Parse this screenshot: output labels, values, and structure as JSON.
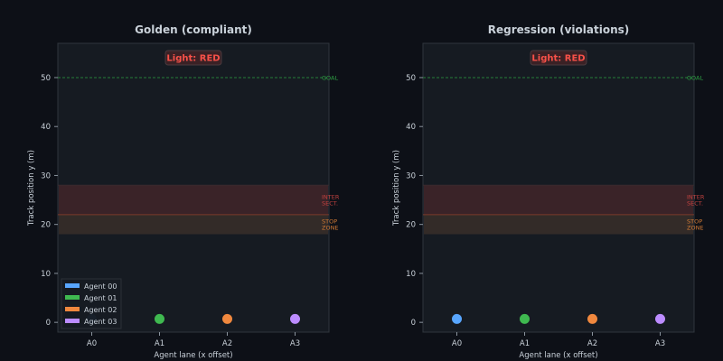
{
  "chart_data": [
    {
      "type": "scatter",
      "title": "Golden  (compliant)",
      "xlabel": "Agent lane (x offset)",
      "ylabel": "Track position  y (m)",
      "xlim": [
        -0.5,
        3.5
      ],
      "ylim": [
        -2,
        57
      ],
      "yticks": [
        0,
        10,
        20,
        30,
        40,
        50
      ],
      "xticks": [
        "A0",
        "A1",
        "A2",
        "A3"
      ],
      "light_label": "Light: RED",
      "goal": {
        "y": 50,
        "label": "GOAL"
      },
      "zones": [
        {
          "name": "intersection",
          "label_lines": [
            "INTER",
            "SECT."
          ],
          "y0": 22,
          "y1": 28,
          "color": "#3a2328",
          "label_color": "#c0413f"
        },
        {
          "name": "stop-zone",
          "label_lines": [
            "STOP",
            "ZONE"
          ],
          "y0": 18,
          "y1": 22,
          "color": "#332b28",
          "label_color": "#d17a35"
        }
      ],
      "legend": {
        "placement": "lower-left",
        "entries": [
          "Agent 00",
          "Agent 01",
          "Agent 02",
          "Agent 03"
        ]
      },
      "series": [
        {
          "name": "Agent 00",
          "x": 0,
          "y": 0.7,
          "color": "#58a6ff",
          "faded": true
        },
        {
          "name": "Agent 01",
          "x": 1,
          "y": 0.7,
          "color": "#3fb950",
          "faded": false
        },
        {
          "name": "Agent 02",
          "x": 2,
          "y": 0.7,
          "color": "#f0883e",
          "faded": false
        },
        {
          "name": "Agent 03",
          "x": 3,
          "y": 0.7,
          "color": "#bc8cff",
          "faded": false
        }
      ]
    },
    {
      "type": "scatter",
      "title": "Regression  (violations)",
      "xlabel": "Agent lane (x offset)",
      "ylabel": "Track position  y (m)",
      "xlim": [
        -0.5,
        3.5
      ],
      "ylim": [
        -2,
        57
      ],
      "yticks": [
        0,
        10,
        20,
        30,
        40,
        50
      ],
      "xticks": [
        "A0",
        "A1",
        "A2",
        "A3"
      ],
      "light_label": "Light: RED",
      "goal": {
        "y": 50,
        "label": "GOAL"
      },
      "zones": [
        {
          "name": "intersection",
          "label_lines": [
            "INTER",
            "SECT."
          ],
          "y0": 22,
          "y1": 28,
          "color": "#3a2328",
          "label_color": "#c0413f"
        },
        {
          "name": "stop-zone",
          "label_lines": [
            "STOP",
            "ZONE"
          ],
          "y0": 18,
          "y1": 22,
          "color": "#332b28",
          "label_color": "#d17a35"
        }
      ],
      "legend": null,
      "series": [
        {
          "name": "Agent 00",
          "x": 0,
          "y": 0.7,
          "color": "#58a6ff",
          "faded": false
        },
        {
          "name": "Agent 01",
          "x": 1,
          "y": 0.7,
          "color": "#3fb950",
          "faded": false
        },
        {
          "name": "Agent 02",
          "x": 2,
          "y": 0.7,
          "color": "#f0883e",
          "faded": false
        },
        {
          "name": "Agent 03",
          "x": 3,
          "y": 0.7,
          "color": "#bc8cff",
          "faded": false
        }
      ]
    }
  ]
}
